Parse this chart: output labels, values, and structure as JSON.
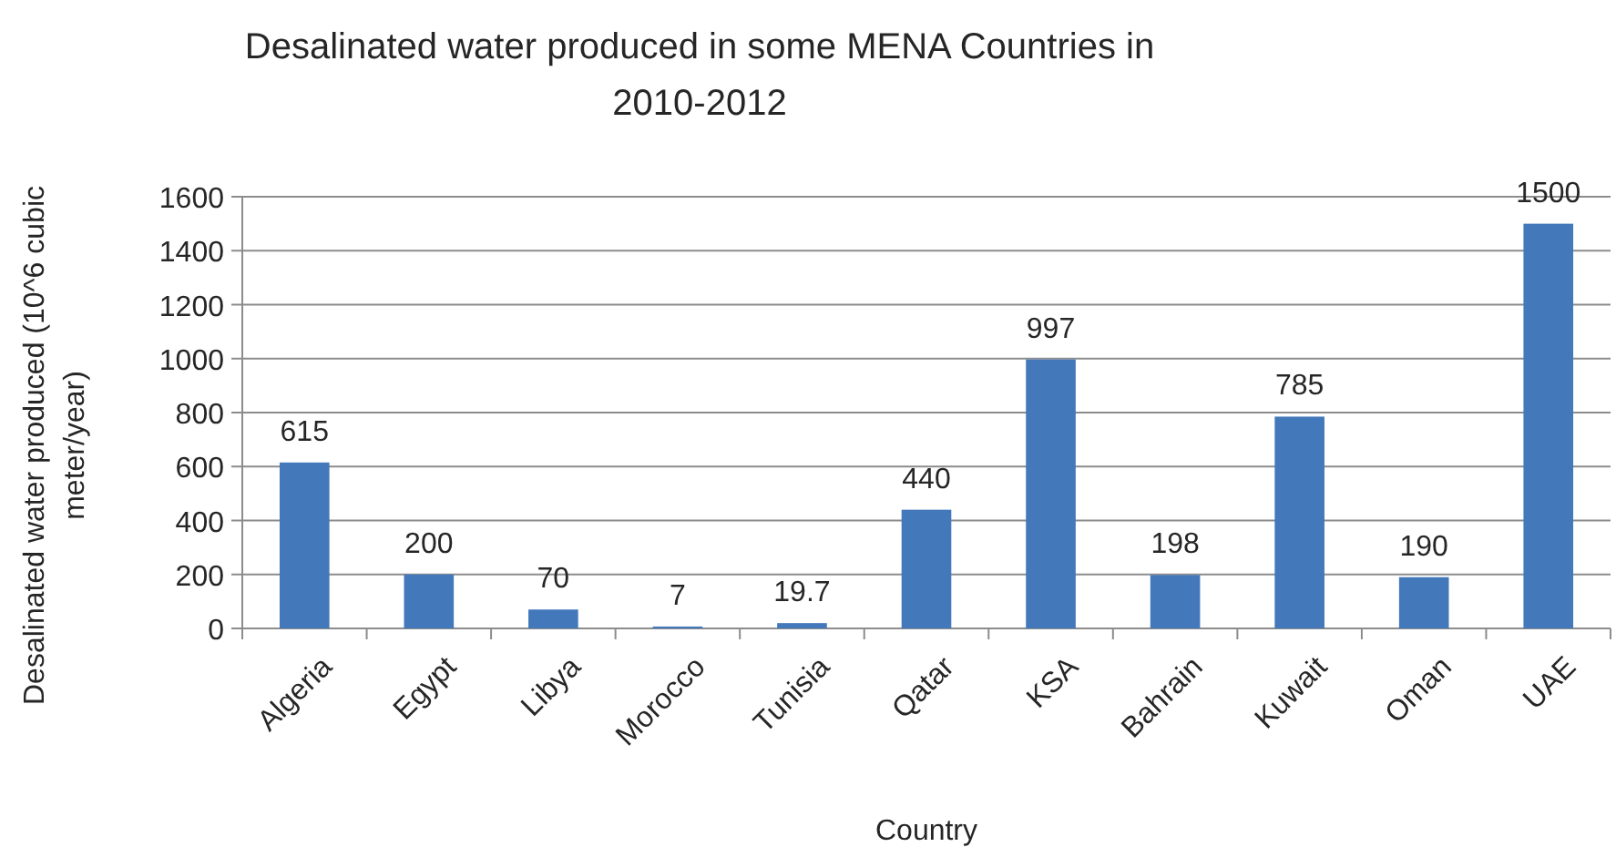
{
  "chart_data": {
    "type": "bar",
    "title": "Desalinated water produced in some MENA Countries in 2010-2012",
    "xlabel": "Country",
    "ylabel": "Desalinated water produced (10^6 cubic meter/year)",
    "categories": [
      "Algeria",
      "Egypt",
      "Libya",
      "Morocco",
      "Tunisia",
      "Qatar",
      "KSA",
      "Bahrain",
      "Kuwait",
      "Oman",
      "UAE"
    ],
    "values": [
      615,
      200,
      70,
      7,
      19.7,
      440,
      997,
      198,
      785,
      190,
      1500
    ],
    "color": "#4378bb",
    "ylim": [
      0,
      1600
    ],
    "yticks": [
      0,
      200,
      400,
      600,
      800,
      1000,
      1200,
      1400,
      1600
    ],
    "grid": "y",
    "data_labels": true
  }
}
